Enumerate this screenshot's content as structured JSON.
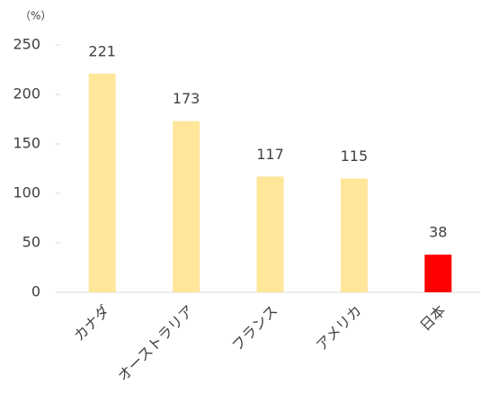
{
  "chart_data": {
    "type": "bar",
    "y_axis_label": "（%）",
    "categories": [
      "カナダ",
      "オーストラリア",
      "フランス",
      "アメリカ",
      "日本"
    ],
    "values": [
      221,
      173,
      117,
      115,
      38
    ],
    "colors": [
      "#FFE699",
      "#FFE699",
      "#FFE699",
      "#FFE699",
      "#FF0000"
    ],
    "ylim": [
      0,
      250
    ],
    "yticks": [
      0,
      50,
      100,
      150,
      200,
      250
    ],
    "grid": false
  }
}
